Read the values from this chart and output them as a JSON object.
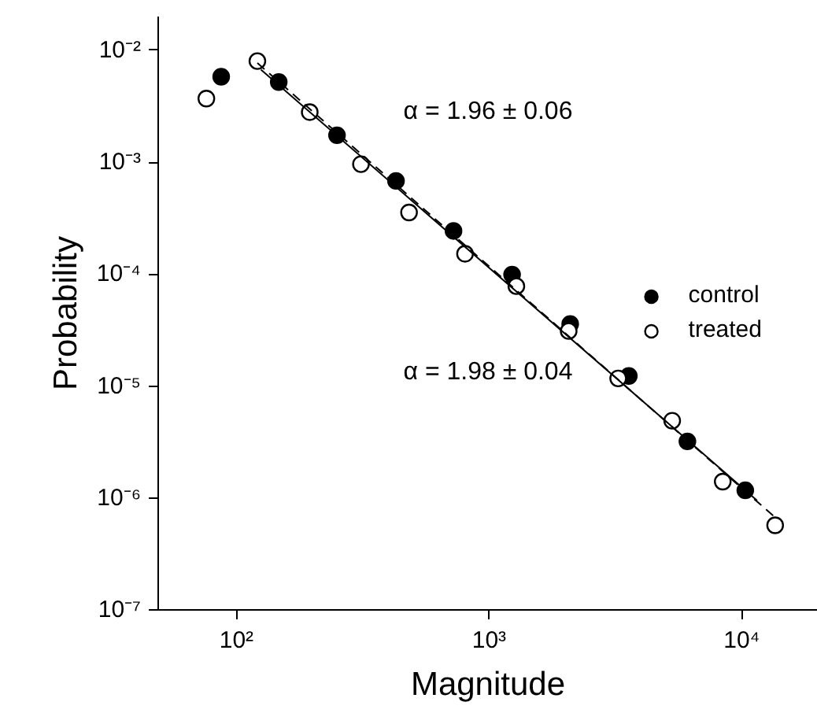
{
  "chart_data": {
    "type": "scatter",
    "xlabel": "Magnitude",
    "ylabel": "Probability",
    "log": "xy",
    "xlim": [
      49,
      20000
    ],
    "ylim": [
      1e-07,
      0.02
    ],
    "xticks": [
      {
        "value": 100,
        "label": "10²"
      },
      {
        "value": 1000,
        "label": "10³"
      },
      {
        "value": 10000,
        "label": "10⁴"
      }
    ],
    "yticks": [
      {
        "value": 1e-07,
        "label": "10⁻⁷"
      },
      {
        "value": 1e-06,
        "label": "10⁻⁶"
      },
      {
        "value": 1e-05,
        "label": "10⁻⁵"
      },
      {
        "value": 0.0001,
        "label": "10⁻⁴"
      },
      {
        "value": 0.001,
        "label": "10⁻³"
      },
      {
        "value": 0.01,
        "label": "10⁻²"
      }
    ],
    "grid": false,
    "legend": "right",
    "annotations": [
      "α = 1.96 ± 0.06",
      "α = 1.98 ± 0.04"
    ],
    "series": [
      {
        "name": "control",
        "marker": "circle",
        "color": "#000000",
        "x": [
          87,
          147,
          250,
          428,
          723,
          1233,
          2094,
          3573,
          6095,
          10330
        ],
        "values": [
          0.0058,
          0.0052,
          0.00174,
          0.00068,
          0.000243,
          9.9e-05,
          3.58e-05,
          1.23e-05,
          3.2e-06,
          1.17e-06
        ]
      },
      {
        "name": "treated",
        "marker": "circle",
        "color": "#ffffff",
        "x": [
          76,
          121,
          195,
          311,
          482,
          803,
          1282,
          2065,
          3243,
          5305,
          8410,
          13560
        ],
        "values": [
          0.0037,
          0.008,
          0.0028,
          0.00096,
          0.000355,
          0.000152,
          7.8e-05,
          3.1e-05,
          1.17e-05,
          4.9e-06,
          1.4e-06,
          5.7e-07
        ]
      },
      {
        "type": "line",
        "line_style": "solid",
        "color": "#000000",
        "x": [
          125,
          11500
        ],
        "values": [
          0.0067,
          9.5e-07
        ]
      },
      {
        "type": "line",
        "line_style": "dashed",
        "color": "#000000",
        "x": [
          121,
          13560
        ],
        "values": [
          0.0077,
          6.7e-07
        ]
      }
    ]
  }
}
